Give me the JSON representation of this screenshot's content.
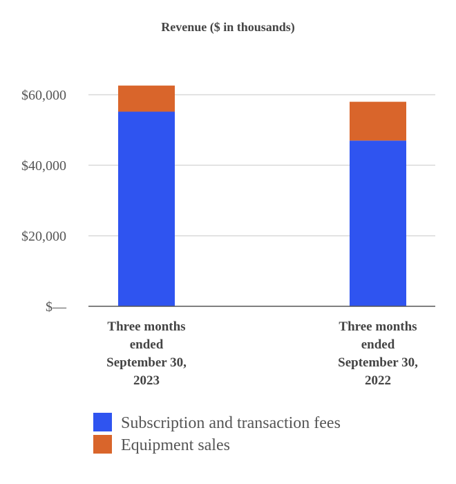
{
  "chart_data": {
    "type": "bar",
    "stacked": true,
    "title": "Revenue ($ in thousands)",
    "categories": [
      [
        "Three months",
        "ended",
        "September 30,",
        "2023"
      ],
      [
        "Three months",
        "ended",
        "September 30,",
        "2022"
      ]
    ],
    "series": [
      {
        "name": "Subscription and transaction fees",
        "color": "#2f54f0",
        "values": [
          55200,
          47000
        ]
      },
      {
        "name": "Equipment sales",
        "color": "#d9652b",
        "values": [
          7400,
          11000
        ]
      }
    ],
    "ylim": [
      0,
      60000
    ],
    "yticks": [
      {
        "value": 0,
        "label": "$—"
      },
      {
        "value": 20000,
        "label": "$20,000"
      },
      {
        "value": 40000,
        "label": "$40,000"
      },
      {
        "value": 60000,
        "label": "$60,000"
      }
    ],
    "grid": true,
    "legend_position": "bottom"
  }
}
